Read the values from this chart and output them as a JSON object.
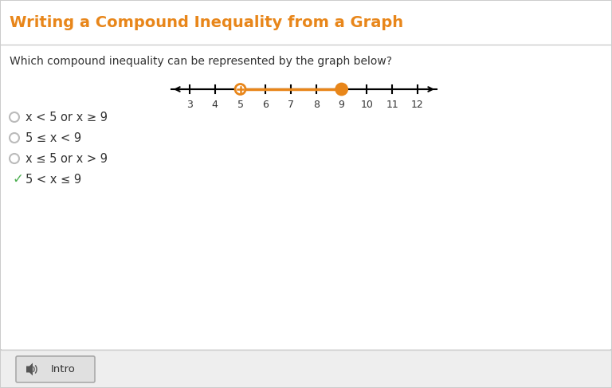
{
  "title": "Writing a Compound Inequality from a Graph",
  "title_color": "#E8861A",
  "bg_color": "#F5F5F5",
  "header_bg": "#FFFFFF",
  "content_bg": "#FFFFFF",
  "question": "Which compound inequality can be represented by the graph below?",
  "number_line": {
    "tick_labels": [
      3,
      4,
      5,
      6,
      7,
      8,
      9,
      10,
      11,
      12
    ],
    "open_point": 5,
    "closed_point": 9,
    "line_color": "#E8861A",
    "point_color": "#E8861A"
  },
  "choices": [
    {
      "label": "x < 5 or x ≥ 9",
      "correct": false
    },
    {
      "label": "5 ≤ x < 9",
      "correct": false
    },
    {
      "label": "x ≤ 5 or x > 9",
      "correct": false
    },
    {
      "label": "5 < x ≤ 9",
      "correct": true
    }
  ],
  "footer_text": "Intro",
  "border_color": "#CCCCCC",
  "divider_color": "#CCCCCC",
  "footer_bg": "#EEEEEE",
  "radio_color": "#BBBBBB",
  "check_color": "#4CAF50",
  "text_color": "#333333",
  "title_fontsize": 14,
  "question_fontsize": 10,
  "choice_fontsize": 10.5,
  "tick_fontsize": 9
}
